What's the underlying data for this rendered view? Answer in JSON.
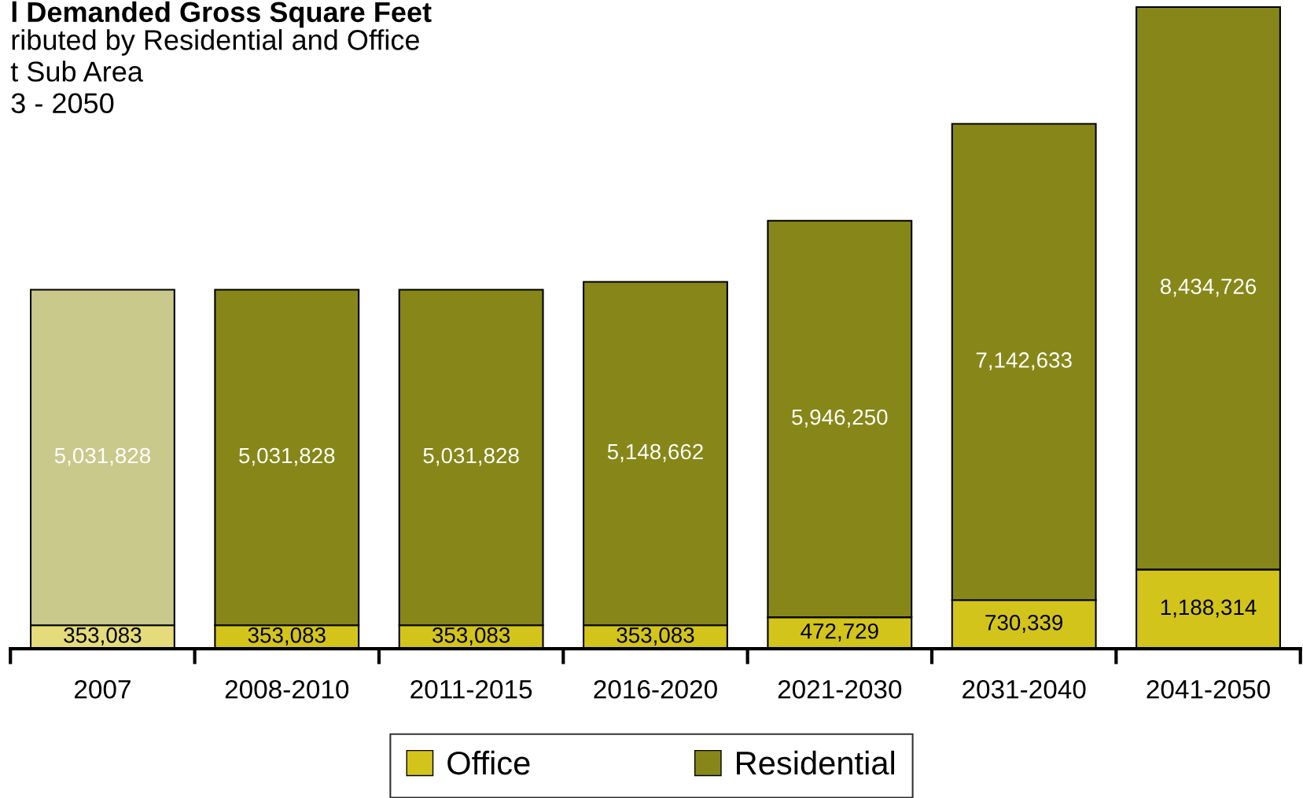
{
  "chart_data": {
    "type": "bar",
    "stacked": true,
    "title": "l Demanded Gross Square Feet",
    "subtitle": "ributed by Residential and Office\nt Sub Area\n3 - 2050",
    "categories": [
      "2007",
      "2008-2010",
      "2011-2015",
      "2016-2020",
      "2021-2030",
      "2031-2040",
      "2041-2050"
    ],
    "series": [
      {
        "name": "Office",
        "color": "#d3c41c",
        "colors": [
          "#e4dc7a",
          "#d3c41c",
          "#d3c41c",
          "#d3c41c",
          "#d3c41c",
          "#d3c41c",
          "#d3c41c"
        ],
        "values": [
          353083,
          353083,
          353083,
          353083,
          472729,
          730339,
          1188314
        ],
        "value_labels": [
          "353,083",
          "353,083",
          "353,083",
          "353,083",
          "472,729",
          "730,339",
          "1,188,314"
        ]
      },
      {
        "name": "Residential",
        "color": "#878719",
        "colors": [
          "#c9c98c",
          "#878719",
          "#878719",
          "#878719",
          "#878719",
          "#878719",
          "#878719"
        ],
        "values": [
          5031828,
          5031828,
          5031828,
          5148662,
          5946250,
          7142633,
          8434726
        ],
        "value_labels": [
          "5,031,828",
          "5,031,828",
          "5,031,828",
          "5,148,662",
          "5,946,250",
          "7,142,633",
          "8,434,726"
        ]
      }
    ],
    "legend": "bottom",
    "grid": false
  }
}
